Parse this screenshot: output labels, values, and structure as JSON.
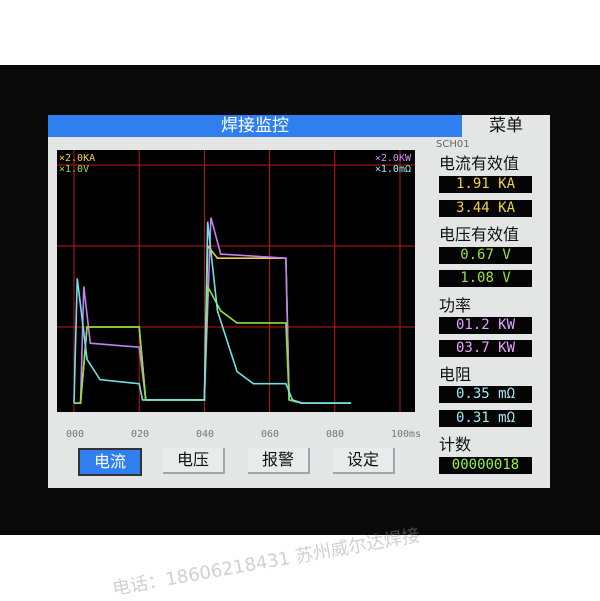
{
  "title": "焊接监控",
  "menu": "菜单",
  "scales": {
    "left": [
      "×2.0KA",
      "×1.0V"
    ],
    "right": [
      "×2.0KW",
      "×1.0mΩ"
    ]
  },
  "x_ticks": [
    "000",
    "020",
    "040",
    "060",
    "080",
    "100ms"
  ],
  "buttons": [
    {
      "label": "电流",
      "active": true
    },
    {
      "label": "电压",
      "active": false
    },
    {
      "label": "报警",
      "active": false
    },
    {
      "label": "设定",
      "active": false
    }
  ],
  "channel": "SCH01",
  "readouts": {
    "current": {
      "label": "电流有效值",
      "values": [
        {
          "num": "1.91",
          "unit": "KA"
        },
        {
          "num": "3.44",
          "unit": "KA"
        }
      ],
      "color": "#f0d040"
    },
    "voltage": {
      "label": "电压有效值",
      "values": [
        {
          "num": "0.67",
          "unit": "V"
        },
        {
          "num": "1.08",
          "unit": "V"
        }
      ],
      "color": "#9be040"
    },
    "power": {
      "label": "功率",
      "values": [
        {
          "num": "01.2",
          "unit": "KW"
        },
        {
          "num": "03.7",
          "unit": "KW"
        }
      ],
      "color": "#e6a0ff"
    },
    "resistance": {
      "label": "电阻",
      "values": [
        {
          "num": "0.35",
          "unit": "mΩ"
        },
        {
          "num": "0.31",
          "unit": "mΩ"
        }
      ],
      "color": "#9ee8f0"
    },
    "count": {
      "label": "计数",
      "value": "00000018",
      "color": "#9bf040"
    }
  },
  "watermark": "电话：18606218431 苏州威尔达焊接",
  "chart_data": {
    "type": "line",
    "xlim": [
      0,
      100
    ],
    "ylim": [
      0,
      3.2
    ],
    "xunit": "ms",
    "grid": true,
    "series": [
      {
        "color": "#f0d040",
        "points": [
          [
            0,
            0.06
          ],
          [
            2,
            0.06
          ],
          [
            4,
            1.0
          ],
          [
            20,
            1.0
          ],
          [
            22,
            0.1
          ],
          [
            40,
            0.1
          ],
          [
            41,
            2.0
          ],
          [
            44,
            1.85
          ],
          [
            65,
            1.85
          ],
          [
            66,
            0.1
          ],
          [
            70,
            0.06
          ],
          [
            85,
            0.06
          ]
        ]
      },
      {
        "color": "#c080f0",
        "points": [
          [
            0,
            0.06
          ],
          [
            2,
            0.06
          ],
          [
            3,
            1.5
          ],
          [
            5,
            0.8
          ],
          [
            20,
            0.75
          ],
          [
            22,
            0.1
          ],
          [
            40,
            0.1
          ],
          [
            42,
            2.35
          ],
          [
            45,
            1.9
          ],
          [
            65,
            1.85
          ],
          [
            66,
            0.1
          ],
          [
            70,
            0.06
          ],
          [
            85,
            0.06
          ]
        ]
      },
      {
        "color": "#90e040",
        "points": [
          [
            0,
            0.06
          ],
          [
            2,
            0.06
          ],
          [
            4,
            1.0
          ],
          [
            20,
            1.0
          ],
          [
            22,
            0.1
          ],
          [
            40,
            0.1
          ],
          [
            41,
            1.5
          ],
          [
            45,
            1.2
          ],
          [
            50,
            1.05
          ],
          [
            65,
            1.05
          ],
          [
            66,
            0.1
          ],
          [
            70,
            0.06
          ],
          [
            85,
            0.06
          ]
        ]
      },
      {
        "color": "#70e0e8",
        "points": [
          [
            0,
            0.06
          ],
          [
            1,
            1.6
          ],
          [
            4,
            0.6
          ],
          [
            8,
            0.35
          ],
          [
            20,
            0.3
          ],
          [
            21,
            0.1
          ],
          [
            40,
            0.1
          ],
          [
            41,
            2.3
          ],
          [
            44,
            1.2
          ],
          [
            50,
            0.45
          ],
          [
            55,
            0.3
          ],
          [
            65,
            0.3
          ],
          [
            67,
            0.1
          ],
          [
            70,
            0.06
          ],
          [
            85,
            0.06
          ]
        ]
      }
    ]
  }
}
